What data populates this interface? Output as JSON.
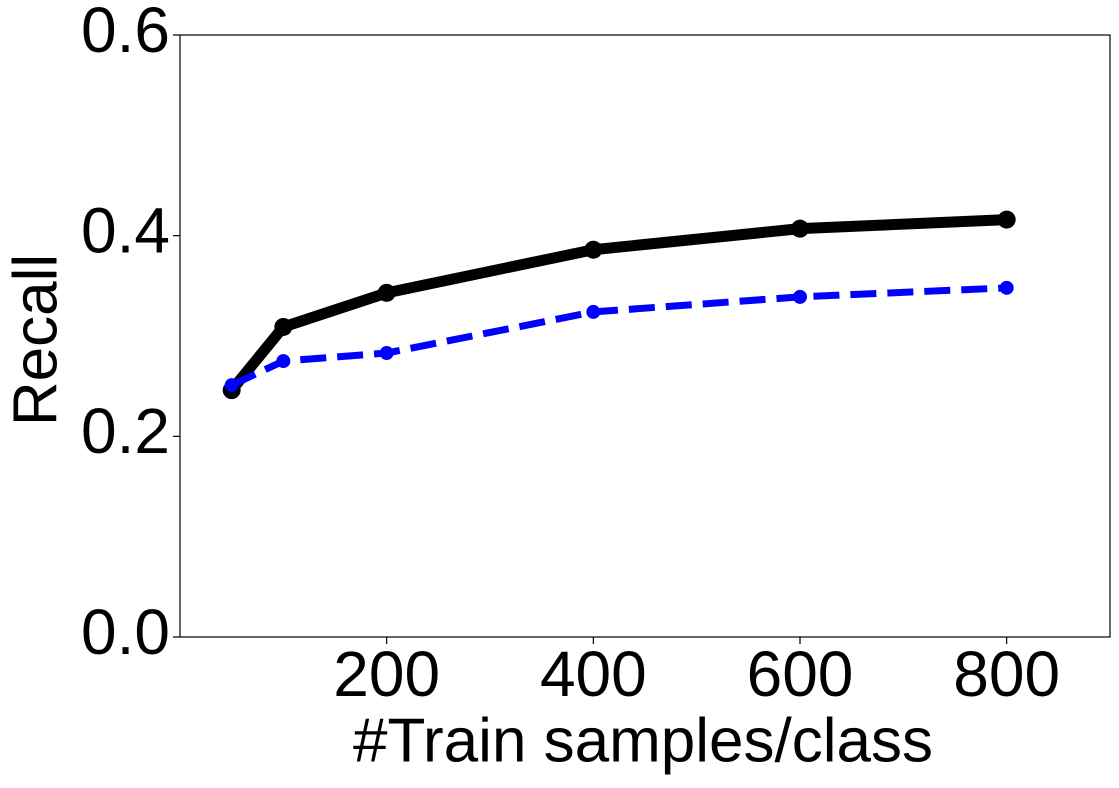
{
  "chart_data": {
    "type": "line",
    "xlabel": "#Train samples/class",
    "ylabel": "Recall",
    "x": [
      50,
      100,
      200,
      400,
      600,
      800
    ],
    "series": [
      {
        "color": "#000000",
        "dashed": false,
        "values": [
          0.246,
          0.309,
          0.343,
          0.386,
          0.407,
          0.416
        ]
      },
      {
        "color": "#0000ff",
        "dashed": true,
        "values": [
          0.251,
          0.275,
          0.283,
          0.324,
          0.339,
          0.348
        ]
      }
    ],
    "xlim": [
      0,
      900
    ],
    "xticks": [
      200,
      400,
      600,
      800
    ],
    "ylim": [
      0,
      0.6
    ],
    "yticks": [
      {
        "value": 0,
        "label": "0.0"
      },
      {
        "value": 0.2,
        "label": "0.2"
      },
      {
        "value": 0.4,
        "label": "0.4"
      },
      {
        "value": 0.6,
        "label": "0.6"
      }
    ],
    "grid": false
  }
}
